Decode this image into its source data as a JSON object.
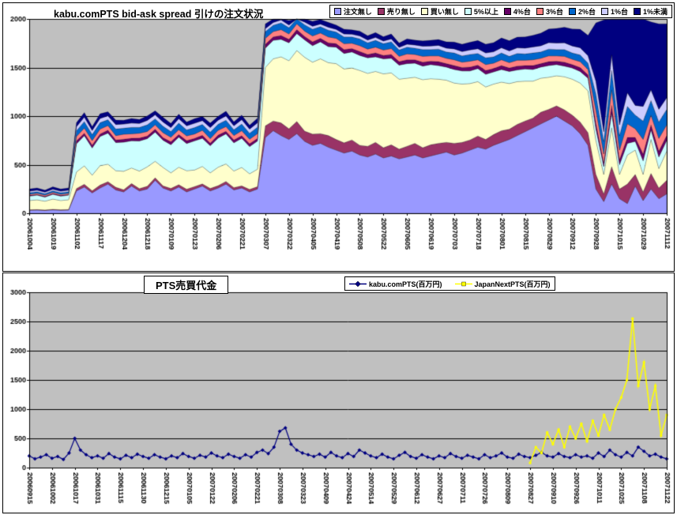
{
  "chart_data": [
    {
      "type": "area",
      "stacked": true,
      "title": "kabu.comPTS bid-ask spread 引けの注文状況",
      "plot_bg": "#C0C0C0",
      "grid": true,
      "legend_position": "top-right",
      "ylim": [
        0,
        2000
      ],
      "ytick_step": 500,
      "yticklabels": [
        "0",
        "500",
        "1000",
        "1500",
        "2000"
      ],
      "points_per_interval": 3,
      "xticklabels": [
        "20061004",
        "20061019",
        "20061102",
        "20061117",
        "20061204",
        "20061218",
        "20070109",
        "20070123",
        "20070206",
        "20070221",
        "20070307",
        "20070322",
        "20070405",
        "20070419",
        "20070508",
        "20070522",
        "20070605",
        "20070619",
        "20070703",
        "20070718",
        "20070801",
        "20070815",
        "20070829",
        "20070912",
        "20070928",
        "20071015",
        "20071029",
        "20071112"
      ],
      "series": [
        {
          "name": "注文無し",
          "color": "#9999FF",
          "values": [
            30,
            32,
            28,
            35,
            30,
            33,
            230,
            270,
            210,
            260,
            300,
            240,
            220,
            280,
            230,
            250,
            340,
            260,
            230,
            270,
            220,
            250,
            280,
            230,
            260,
            300,
            240,
            260,
            220,
            250,
            780,
            850,
            800,
            760,
            820,
            740,
            700,
            720,
            680,
            650,
            620,
            640,
            600,
            580,
            610,
            570,
            590,
            560,
            580,
            600,
            570,
            590,
            610,
            630,
            600,
            620,
            650,
            680,
            660,
            700,
            730,
            760,
            800,
            840,
            880,
            920,
            960,
            1000,
            950,
            900,
            820,
            700,
            250,
            120,
            300,
            150,
            100,
            280,
            130,
            250,
            150,
            200
          ]
        },
        {
          "name": "売り無し",
          "color": "#993366",
          "values": [
            6,
            6,
            6,
            6,
            6,
            6,
            25,
            28,
            22,
            30,
            25,
            28,
            22,
            26,
            24,
            28,
            25,
            22,
            26,
            24,
            28,
            25,
            22,
            26,
            24,
            28,
            25,
            22,
            26,
            24,
            120,
            100,
            130,
            110,
            125,
            105,
            115,
            100,
            120,
            110,
            105,
            115,
            100,
            110,
            120,
            105,
            115,
            100,
            110,
            120,
            105,
            115,
            110,
            100,
            120,
            110,
            105,
            115,
            100,
            110,
            120,
            105,
            115,
            110,
            100,
            120,
            110,
            105,
            115,
            110,
            120,
            130,
            150,
            80,
            180,
            100,
            200,
            120,
            90,
            160,
            110,
            140
          ]
        },
        {
          "name": "買い無し",
          "color": "#FFFFCC",
          "values": [
            95,
            100,
            90,
            105,
            95,
            100,
            170,
            190,
            160,
            200,
            180,
            170,
            190,
            160,
            180,
            200,
            170,
            190,
            160,
            180,
            190,
            170,
            180,
            160,
            190,
            180,
            170,
            190,
            160,
            180,
            600,
            640,
            680,
            700,
            730,
            760,
            740,
            770,
            750,
            780,
            760,
            740,
            770,
            750,
            730,
            760,
            740,
            720,
            700,
            680,
            700,
            680,
            660,
            640,
            620,
            600,
            580,
            560,
            540,
            520,
            500,
            470,
            440,
            410,
            380,
            350,
            330,
            310,
            340,
            370,
            400,
            430,
            350,
            200,
            400,
            150,
            300,
            250,
            180,
            350,
            200,
            300
          ]
        },
        {
          "name": "5%以上",
          "color": "#CCFFFF",
          "values": [
            45,
            48,
            42,
            50,
            45,
            47,
            290,
            310,
            280,
            300,
            320,
            290,
            300,
            280,
            310,
            290,
            300,
            280,
            290,
            310,
            280,
            300,
            290,
            280,
            300,
            310,
            290,
            300,
            280,
            290,
            200,
            190,
            180,
            185,
            175,
            180,
            170,
            175,
            165,
            170,
            160,
            165,
            155,
            160,
            150,
            155,
            150,
            145,
            150,
            145,
            140,
            145,
            140,
            135,
            140,
            135,
            130,
            135,
            130,
            125,
            130,
            125,
            120,
            125,
            120,
            115,
            120,
            115,
            110,
            115,
            120,
            130,
            120,
            80,
            150,
            100,
            120,
            90,
            140,
            100,
            120,
            110
          ]
        },
        {
          "name": "4%台",
          "color": "#660066",
          "values": [
            8,
            8,
            8,
            8,
            8,
            8,
            30,
            26,
            30,
            26,
            30,
            26,
            30,
            26,
            30,
            26,
            30,
            26,
            30,
            26,
            30,
            26,
            30,
            26,
            30,
            26,
            30,
            26,
            30,
            26,
            40,
            35,
            40,
            35,
            40,
            35,
            40,
            35,
            40,
            35,
            40,
            35,
            40,
            35,
            40,
            35,
            40,
            35,
            40,
            35,
            40,
            35,
            40,
            35,
            40,
            35,
            40,
            35,
            40,
            35,
            40,
            35,
            40,
            35,
            40,
            35,
            40,
            35,
            40,
            35,
            40,
            35,
            60,
            40,
            80,
            50,
            60,
            40,
            70,
            50,
            60,
            50
          ]
        },
        {
          "name": "3%台",
          "color": "#FF8080",
          "values": [
            12,
            12,
            12,
            12,
            12,
            12,
            45,
            52,
            46,
            50,
            48,
            45,
            52,
            46,
            50,
            48,
            45,
            52,
            46,
            50,
            48,
            45,
            52,
            46,
            50,
            48,
            45,
            52,
            46,
            50,
            60,
            55,
            60,
            55,
            60,
            55,
            60,
            55,
            60,
            55,
            60,
            55,
            60,
            55,
            60,
            55,
            60,
            55,
            60,
            55,
            60,
            55,
            60,
            55,
            60,
            55,
            60,
            55,
            60,
            55,
            60,
            55,
            60,
            55,
            60,
            55,
            60,
            55,
            60,
            55,
            60,
            55,
            130,
            90,
            160,
            100,
            140,
            90,
            150,
            100,
            130,
            110
          ]
        },
        {
          "name": "2%台",
          "color": "#0066CC",
          "values": [
            16,
            16,
            16,
            16,
            16,
            16,
            60,
            68,
            62,
            66,
            60,
            68,
            62,
            66,
            60,
            68,
            62,
            66,
            60,
            68,
            62,
            66,
            60,
            68,
            62,
            66,
            60,
            68,
            62,
            66,
            70,
            65,
            70,
            65,
            70,
            65,
            70,
            65,
            70,
            65,
            70,
            65,
            70,
            65,
            70,
            65,
            70,
            65,
            70,
            65,
            70,
            65,
            70,
            65,
            70,
            65,
            70,
            65,
            70,
            65,
            70,
            65,
            70,
            65,
            70,
            65,
            70,
            65,
            70,
            65,
            70,
            65,
            170,
            130,
            200,
            150,
            180,
            140,
            190,
            150,
            170,
            160
          ]
        },
        {
          "name": "1%台",
          "color": "#CCCCFF",
          "values": [
            15,
            15,
            15,
            15,
            15,
            15,
            40,
            46,
            42,
            44,
            40,
            46,
            42,
            44,
            40,
            46,
            42,
            44,
            40,
            46,
            42,
            44,
            40,
            46,
            42,
            44,
            40,
            46,
            42,
            44,
            30,
            28,
            30,
            28,
            30,
            28,
            30,
            28,
            30,
            28,
            30,
            28,
            30,
            28,
            30,
            28,
            30,
            28,
            30,
            32,
            34,
            36,
            38,
            40,
            42,
            44,
            46,
            48,
            50,
            52,
            54,
            56,
            58,
            60,
            62,
            64,
            66,
            68,
            70,
            72,
            74,
            76,
            130,
            100,
            160,
            110,
            140,
            100,
            150,
            110,
            130,
            120
          ]
        },
        {
          "name": "1%未満",
          "color": "#000080",
          "values": [
            22,
            24,
            20,
            26,
            22,
            24,
            42,
            46,
            40,
            48,
            42,
            46,
            40,
            48,
            42,
            46,
            40,
            48,
            42,
            46,
            40,
            48,
            42,
            46,
            40,
            48,
            42,
            46,
            40,
            48,
            50,
            45,
            50,
            45,
            50,
            45,
            50,
            45,
            50,
            45,
            50,
            45,
            50,
            45,
            50,
            45,
            50,
            45,
            55,
            50,
            55,
            60,
            60,
            65,
            70,
            75,
            80,
            85,
            90,
            95,
            100,
            105,
            110,
            115,
            120,
            130,
            140,
            150,
            160,
            175,
            190,
            210,
            600,
            1150,
            400,
            1100,
            800,
            950,
            900,
            700,
            880,
            760
          ]
        }
      ]
    },
    {
      "type": "line",
      "title": "PTS売買代金",
      "plot_bg": "#C0C0C0",
      "grid": true,
      "legend_position": "top-center",
      "ylim": [
        0,
        3000
      ],
      "ytick_step": 500,
      "yticklabels": [
        "0",
        "500",
        "1000",
        "1500",
        "2000",
        "2500",
        "3000"
      ],
      "points_per_interval": 4,
      "xticklabels": [
        "20060915",
        "20061002",
        "20061017",
        "20061031",
        "20061115",
        "20061130",
        "20061215",
        "20070105",
        "20070122",
        "20070206",
        "20070221",
        "20070308",
        "20070323",
        "20070409",
        "20070424",
        "20070514",
        "20070529",
        "20070612",
        "20070627",
        "20070711",
        "20070726",
        "20070809",
        "20070827",
        "20070910",
        "20070926",
        "20071011",
        "20071025",
        "20071108",
        "20071122"
      ],
      "series": [
        {
          "name": "kabu.comPTS(百万円)",
          "color": "#000080",
          "marker": "diamond",
          "start_index": 0,
          "values": [
            200,
            150,
            180,
            220,
            160,
            190,
            140,
            250,
            500,
            300,
            220,
            170,
            200,
            160,
            240,
            180,
            150,
            210,
            170,
            230,
            190,
            160,
            220,
            180,
            150,
            200,
            170,
            240,
            190,
            160,
            210,
            180,
            250,
            200,
            170,
            230,
            190,
            160,
            220,
            180,
            260,
            300,
            240,
            350,
            620,
            680,
            400,
            300,
            250,
            220,
            190,
            230,
            180,
            260,
            200,
            170,
            240,
            190,
            300,
            250,
            200,
            170,
            230,
            180,
            150,
            210,
            260,
            190,
            160,
            220,
            180,
            150,
            200,
            170,
            240,
            190,
            160,
            210,
            180,
            150,
            220,
            170,
            200,
            250,
            180,
            160,
            230,
            190,
            170,
            210,
            260,
            200,
            180,
            240,
            190,
            170,
            220,
            180,
            200,
            160,
            250,
            190,
            300,
            220,
            180,
            260,
            200,
            350,
            280,
            200,
            230,
            180,
            150
          ]
        },
        {
          "name": "JapanNextPTS(百万円)",
          "color": "#FFFF00",
          "marker": "square",
          "start_index": 88,
          "values": [
            80,
            350,
            250,
            600,
            400,
            650,
            350,
            700,
            500,
            750,
            450,
            800,
            550,
            900,
            650,
            1000,
            1200,
            1500,
            2550,
            1400,
            1800,
            1000,
            1400,
            550,
            900
          ]
        }
      ]
    }
  ]
}
